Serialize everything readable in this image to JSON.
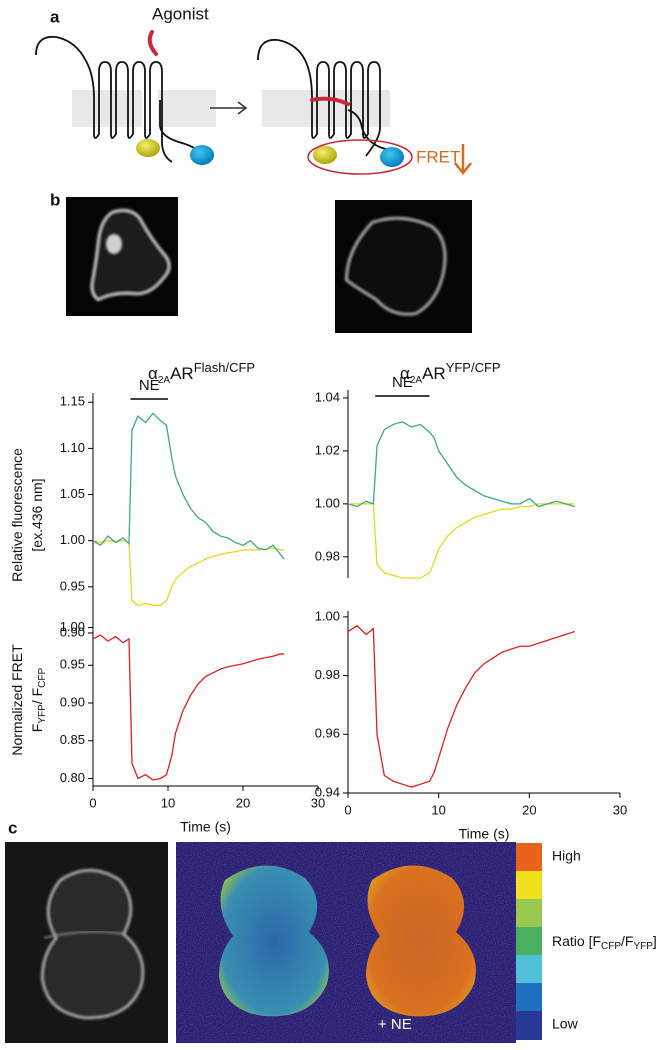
{
  "panel_a": {
    "label": "a",
    "agonist": "Agonist",
    "fret": "FRET"
  },
  "panel_b": {
    "label": "b",
    "constructs": [
      {
        "base": "α",
        "sub": "2A",
        "main": "AR",
        "sup": "Flash/CFP"
      },
      {
        "base": "α",
        "sub": "2A",
        "main": "AR",
        "sup": "YFP/CFP"
      }
    ]
  },
  "panel_c": {
    "label": "c",
    "stimulus": "+ NE",
    "colorbar": {
      "high": "High",
      "ratio": [
        {
          "text": "Ratio [F"
        },
        {
          "text": "CFP",
          "sub": true
        },
        {
          "text": "/F"
        },
        {
          "text": "YFP",
          "sub": true
        },
        {
          "text": "]"
        }
      ],
      "low": "Low"
    }
  },
  "chart_data": [
    {
      "type": "line",
      "ylabel": [
        [
          {
            "text": "Relative fluorescence"
          }
        ],
        [
          {
            "text": "[ex.436 nm]"
          }
        ]
      ],
      "annotation": {
        "text": "NE",
        "x": [
          5,
          10
        ]
      },
      "x": [
        0,
        1,
        2,
        3,
        4,
        4.8,
        5.2,
        6,
        7,
        8,
        9,
        9.8,
        10.5,
        11,
        12,
        13,
        14,
        15,
        16,
        17,
        18,
        19,
        20,
        21,
        22,
        23,
        24,
        25,
        25.5
      ],
      "xlim": [
        0,
        30
      ],
      "ylim": [
        0.9,
        1.16
      ],
      "yticks": [
        {
          "value": 0.9,
          "label": "0.90"
        },
        0.95,
        {
          "value": 1,
          "label": "1.00"
        },
        1.05,
        {
          "value": 1.1,
          "label": "1.10"
        },
        1.15
      ],
      "series": [
        {
          "color": "#e8d61c",
          "values": [
            1.0,
            0.998,
            1.0,
            0.999,
            1.0,
            0.998,
            0.935,
            0.93,
            0.932,
            0.93,
            0.93,
            0.935,
            0.95,
            0.958,
            0.966,
            0.972,
            0.976,
            0.98,
            0.983,
            0.985,
            0.987,
            0.988,
            0.99,
            0.99,
            0.99,
            0.991,
            0.992,
            0.99,
            0.99
          ]
        },
        {
          "color": "#3aa88a",
          "values": [
            1.0,
            0.995,
            1.005,
            0.998,
            1.003,
            0.997,
            1.12,
            1.135,
            1.128,
            1.138,
            1.13,
            1.125,
            1.09,
            1.07,
            1.05,
            1.035,
            1.025,
            1.02,
            1.01,
            1.005,
            1.003,
            0.998,
            0.995,
            1.0,
            0.992,
            0.99,
            0.995,
            0.985,
            0.98
          ]
        }
      ]
    },
    {
      "type": "line",
      "ylabel": [
        [
          {
            "text": "Normalized FRET"
          }
        ],
        [
          {
            "text": "F"
          },
          {
            "text": "YFP",
            "sub": true
          },
          {
            "text": "/ F"
          },
          {
            "text": "CFP",
            "sub": true
          }
        ]
      ],
      "xlabel": "Time (s)",
      "x": [
        0,
        1,
        2,
        3,
        4,
        4.8,
        5.2,
        6,
        7,
        8,
        9,
        9.8,
        10.5,
        11,
        12,
        13,
        14,
        15,
        16,
        17,
        18,
        19,
        20,
        21,
        22,
        23,
        24,
        25,
        25.5
      ],
      "xlim": [
        0,
        30
      ],
      "xticks": [
        0,
        10,
        20,
        30
      ],
      "ylim": [
        0.79,
        1.01
      ],
      "yticks": [
        {
          "value": 0.8,
          "label": "0.80"
        },
        0.85,
        {
          "value": 0.9,
          "label": "0.90"
        },
        0.95,
        {
          "value": 1,
          "label": "1.00"
        }
      ],
      "series": [
        {
          "color": "#e0201c",
          "values": [
            0.985,
            0.99,
            0.982,
            0.988,
            0.98,
            0.985,
            0.82,
            0.8,
            0.805,
            0.798,
            0.8,
            0.805,
            0.83,
            0.86,
            0.89,
            0.91,
            0.925,
            0.935,
            0.94,
            0.945,
            0.948,
            0.95,
            0.952,
            0.955,
            0.958,
            0.96,
            0.962,
            0.965,
            0.965
          ]
        }
      ]
    },
    {
      "type": "line",
      "annotation": {
        "text": "NE",
        "x": [
          3,
          9
        ]
      },
      "x": [
        0,
        1,
        2,
        2.8,
        3.2,
        4,
        5,
        6,
        7,
        8,
        9,
        9.5,
        10,
        11,
        12,
        13,
        14,
        15,
        16,
        17,
        18,
        19,
        20,
        21,
        22,
        23,
        24,
        25
      ],
      "xlim": [
        0,
        30
      ],
      "ylim": [
        0.972,
        1.043
      ],
      "yticks": [
        0.98,
        {
          "value": 1,
          "label": "1.00"
        },
        1.02,
        1.04
      ],
      "series": [
        {
          "color": "#e8d61c",
          "values": [
            1.0,
            1.0,
            1.0,
            1.0,
            0.977,
            0.974,
            0.973,
            0.972,
            0.972,
            0.972,
            0.974,
            0.978,
            0.983,
            0.988,
            0.991,
            0.993,
            0.995,
            0.996,
            0.997,
            0.998,
            0.998,
            0.999,
            0.999,
            1.0,
            1.0,
            1.0,
            1.0,
            1.0
          ]
        },
        {
          "color": "#3aa88a",
          "values": [
            1.0,
            0.999,
            1.001,
            1.0,
            1.022,
            1.028,
            1.03,
            1.031,
            1.029,
            1.03,
            1.027,
            1.025,
            1.02,
            1.015,
            1.01,
            1.007,
            1.005,
            1.003,
            1.002,
            1.001,
            1.0,
            1.0,
            1.002,
            0.999,
            1.0,
            1.001,
            1.0,
            0.999
          ]
        }
      ]
    },
    {
      "type": "line",
      "xlabel": "Time (s)",
      "x": [
        0,
        1,
        2,
        2.8,
        3.2,
        4,
        5,
        6,
        7,
        8,
        9,
        9.5,
        10,
        11,
        12,
        13,
        14,
        15,
        16,
        17,
        18,
        19,
        20,
        21,
        22,
        23,
        24,
        25
      ],
      "xlim": [
        0,
        30
      ],
      "xticks": [
        0,
        10,
        20,
        30
      ],
      "ylim": [
        0.94,
        1.002
      ],
      "yticks": [
        0.94,
        0.96,
        0.98,
        {
          "value": 1,
          "label": "1.00"
        }
      ],
      "series": [
        {
          "color": "#e0201c",
          "values": [
            0.995,
            0.997,
            0.994,
            0.996,
            0.96,
            0.946,
            0.944,
            0.943,
            0.942,
            0.943,
            0.944,
            0.947,
            0.952,
            0.962,
            0.97,
            0.976,
            0.981,
            0.984,
            0.986,
            0.988,
            0.989,
            0.99,
            0.99,
            0.991,
            0.992,
            0.993,
            0.994,
            0.995
          ]
        }
      ]
    }
  ]
}
